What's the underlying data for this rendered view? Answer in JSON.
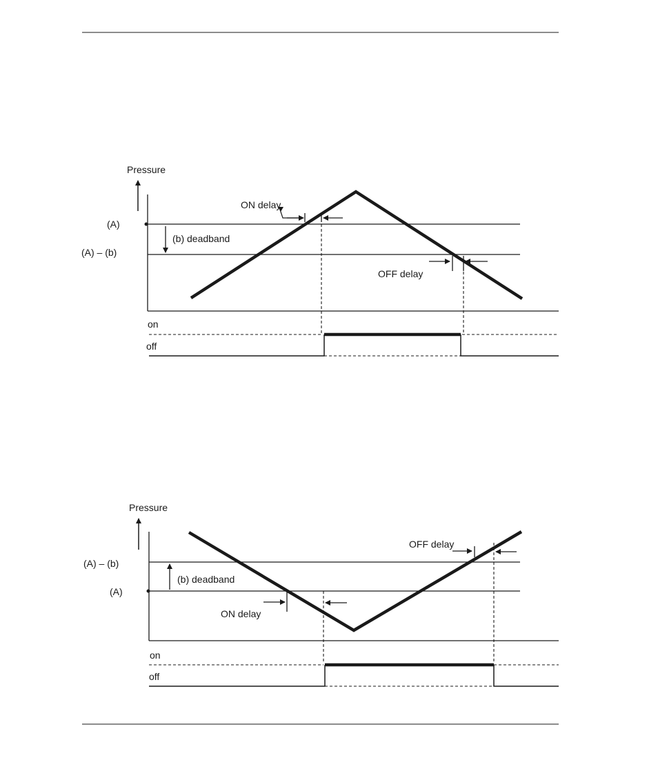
{
  "diagram_top": {
    "axis_label": "Pressure",
    "level_a": "(A)",
    "level_a_minus_b": "(A) –  (b)",
    "deadband_label": "(b) deadband",
    "on_delay_label": "ON delay",
    "off_delay_label": "OFF delay",
    "state_on": "on",
    "state_off": "off"
  },
  "diagram_bottom": {
    "axis_label": "Pressure",
    "level_a_minus_b": "(A) –  (b)",
    "level_a": "(A)",
    "deadband_label": "(b) deadband",
    "on_delay_label": "ON delay",
    "off_delay_label": "OFF delay",
    "state_on": "on",
    "state_off": "off"
  },
  "colors": {
    "ink": "#1a1a1a",
    "background": "#ffffff"
  }
}
